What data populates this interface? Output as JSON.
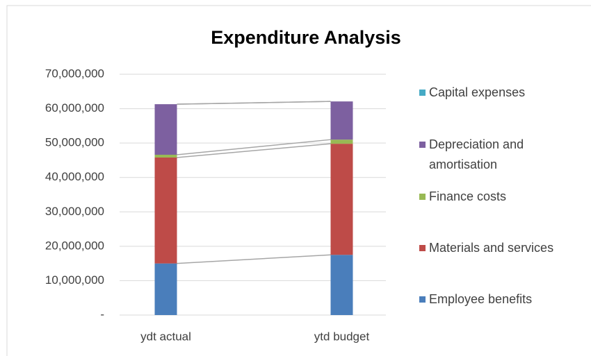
{
  "chart_data": {
    "type": "stacked_bar",
    "title": "Expenditure Analysis",
    "categories": [
      "ydt actual",
      "ytd budget"
    ],
    "series": [
      {
        "name": "Employee benefits",
        "color": "#4a7ebb",
        "values": [
          15000000,
          17500000
        ]
      },
      {
        "name": "Materials and services",
        "color": "#be4b48",
        "values": [
          30800000,
          32300000
        ]
      },
      {
        "name": "Finance costs",
        "color": "#98b954",
        "values": [
          800000,
          1200000
        ]
      },
      {
        "name": "Depreciation and amortisation",
        "color": "#7d60a0",
        "values": [
          14700000,
          11100000
        ]
      },
      {
        "name": "Capital expenses",
        "color": "#46aac5",
        "values": [
          0,
          0
        ]
      }
    ],
    "ylim": [
      0,
      70000000
    ],
    "yticks": [
      {
        "value": 0,
        "label": "-"
      },
      {
        "value": 10000000,
        "label": "10,000,000"
      },
      {
        "value": 20000000,
        "label": "20,000,000"
      },
      {
        "value": 30000000,
        "label": "30,000,000"
      },
      {
        "value": 40000000,
        "label": "40,000,000"
      },
      {
        "value": 50000000,
        "label": "50,000,000"
      },
      {
        "value": 60000000,
        "label": "60,000,000"
      },
      {
        "value": 70000000,
        "label": "70,000,000"
      }
    ],
    "grid": true,
    "legend": "right"
  }
}
